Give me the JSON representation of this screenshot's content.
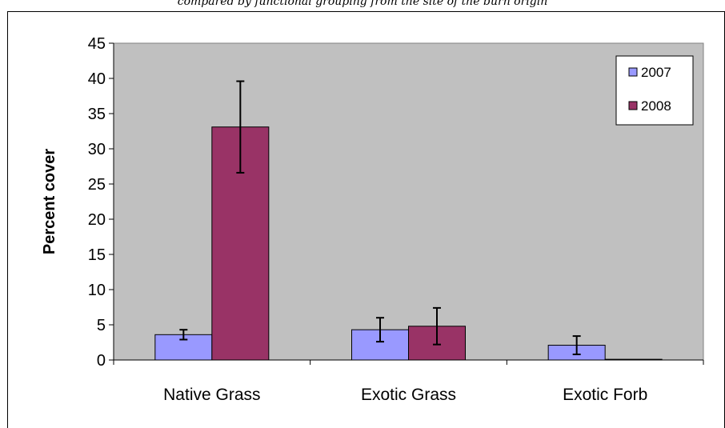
{
  "caption": "compared by functional grouping from the site of the burn origin",
  "chart_data": {
    "type": "bar",
    "title": "",
    "xlabel": "",
    "ylabel": "Percent cover",
    "categories": [
      "Native Grass",
      "Exotic Grass",
      "Exotic Forb"
    ],
    "series": [
      {
        "name": "2007",
        "values": [
          3.6,
          4.3,
          2.1
        ],
        "errors": [
          0.7,
          1.7,
          1.3
        ],
        "color": "#9999ff"
      },
      {
        "name": "2008",
        "values": [
          33.1,
          4.8,
          0.1
        ],
        "errors": [
          6.5,
          2.6,
          0.0
        ],
        "color": "#993366"
      }
    ],
    "ylim": [
      0,
      45
    ],
    "yticks": [
      "0",
      "5",
      "10",
      "15",
      "20",
      "25",
      "30",
      "35",
      "40",
      "45"
    ],
    "grid": false,
    "legend": "top-right",
    "plot_background": "#c0c0c0"
  }
}
